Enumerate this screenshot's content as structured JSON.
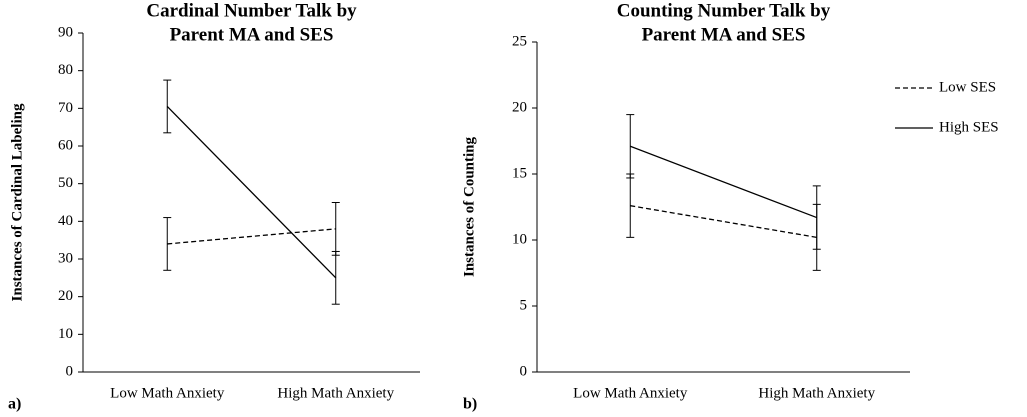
{
  "chart_data": [
    {
      "type": "line",
      "panel": "a)",
      "title": [
        "Cardinal Number Talk by",
        "Parent MA and SES"
      ],
      "y_label": "Instances of Cardinal Labeling",
      "categories": [
        "Low Math Anxiety",
        "High Math Anxiety"
      ],
      "ylim": [
        0,
        90
      ],
      "yticks": [
        0,
        10,
        20,
        30,
        40,
        50,
        60,
        70,
        80,
        90
      ],
      "legend": false,
      "series": [
        {
          "color": "#000000",
          "dash": true,
          "values": [
            34,
            38
          ],
          "errors": [
            7,
            7
          ]
        },
        {
          "color": "#000000",
          "dash": false,
          "values": [
            70.5,
            25
          ],
          "errors": [
            7,
            7
          ]
        }
      ]
    },
    {
      "type": "line",
      "panel": "b)",
      "title": [
        "Counting Number Talk by",
        "Parent MA and SES"
      ],
      "y_label": "Instances of Counting",
      "categories": [
        "Low Math Anxiety",
        "High Math Anxiety"
      ],
      "ylim": [
        0,
        25
      ],
      "yticks": [
        0,
        5,
        10,
        15,
        20,
        25
      ],
      "legend": true,
      "series": [
        {
          "name": "Low SES",
          "color": "#000000",
          "dash": true,
          "values": [
            12.6,
            10.2
          ],
          "errors": [
            2.4,
            2.5
          ]
        },
        {
          "name": "High SES",
          "color": "#000000",
          "dash": false,
          "values": [
            17.1,
            11.7
          ],
          "errors": [
            2.4,
            2.4
          ]
        }
      ]
    }
  ]
}
